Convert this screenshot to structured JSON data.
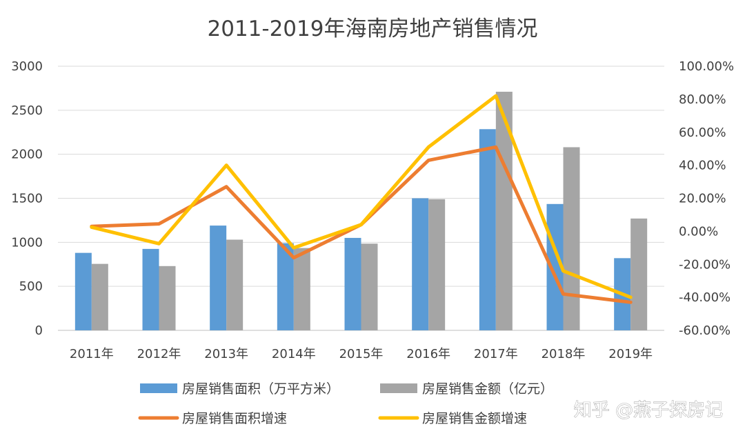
{
  "chart_data": {
    "type": "bar",
    "title": "2011-2019年海南房地产销售情况",
    "categories": [
      "2011年",
      "2012年",
      "2013年",
      "2014年",
      "2015年",
      "2016年",
      "2017年",
      "2018年",
      "2019年"
    ],
    "y_left": {
      "min": 0,
      "max": 3000,
      "step": 500,
      "ticks": [
        "0",
        "500",
        "1000",
        "1500",
        "2000",
        "2500",
        "3000"
      ]
    },
    "y_right": {
      "min": -0.6,
      "max": 1.0,
      "step": 0.2,
      "ticks": [
        "-60.00%",
        "-40.00%",
        "-20.00%",
        "0.00%",
        "20.00%",
        "40.00%",
        "60.00%",
        "80.00%",
        "100.00%"
      ]
    },
    "grid": true,
    "legend_position": "bottom",
    "bar_series": [
      {
        "name": "房屋销售面积（万平方米）",
        "color": "#5b9bd5",
        "values": [
          880,
          925,
          1190,
          990,
          1050,
          1500,
          2285,
          1435,
          820
        ]
      },
      {
        "name": "房屋销售金额（亿元）",
        "color": "#a5a5a5",
        "values": [
          755,
          730,
          1030,
          935,
          985,
          1490,
          2710,
          2080,
          1270
        ]
      }
    ],
    "line_series": [
      {
        "name": "房屋销售面积增速",
        "color": "#ed7d31",
        "axis": "right",
        "values": [
          0.03,
          0.045,
          0.27,
          -0.16,
          0.04,
          0.43,
          0.51,
          -0.38,
          -0.43
        ]
      },
      {
        "name": "房屋销售金额增速",
        "color": "#ffc000",
        "axis": "right",
        "values": [
          0.025,
          -0.075,
          0.4,
          -0.1,
          0.04,
          0.51,
          0.82,
          -0.24,
          -0.4
        ]
      }
    ]
  },
  "watermark": "知乎 @燕子探房记"
}
